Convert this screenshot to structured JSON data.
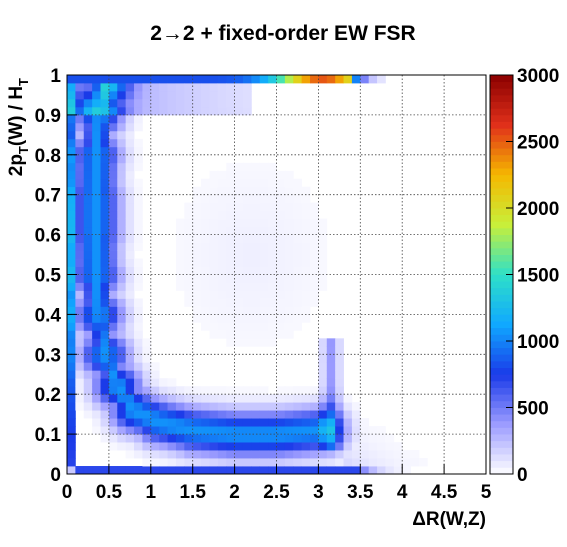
{
  "chart_data": {
    "type": "heatmap",
    "title": "2→2 + fixed-order EW FSR",
    "xlabel": "ΔR(W,Z)",
    "ylabel": "2p_T(W) / H_T",
    "ylabel_parts": {
      "a": "2p",
      "sub1": "T",
      "b": "(W) / H",
      "sub2": "T"
    },
    "xlim": [
      0,
      5
    ],
    "ylim": [
      0,
      1
    ],
    "zlim": [
      0,
      3000
    ],
    "bins": {
      "nx": 50,
      "ny": 50
    },
    "grid": true,
    "x_ticks": [
      "0",
      "0.5",
      "1",
      "1.5",
      "2",
      "2.5",
      "3",
      "3.5",
      "4",
      "4.5",
      "5"
    ],
    "y_ticks": [
      "0",
      "0.1",
      "0.2",
      "0.3",
      "0.4",
      "0.5",
      "0.6",
      "0.7",
      "0.8",
      "0.9",
      "1"
    ],
    "z_ticks": [
      "0",
      "500",
      "1000",
      "1500",
      "2000",
      "2500",
      "3000"
    ],
    "colormap": [
      "#ffffff",
      "#9c9cff",
      "#1a3ae8",
      "#10a8ff",
      "#2ee0c8",
      "#c8ef3a",
      "#f5b800",
      "#e0301a",
      "#8b0000"
    ],
    "features": [
      {
        "region": "top row (y=0.98-1.0)",
        "x": [
          0.0,
          3.3
        ],
        "z_peak": 3000,
        "z_peak_at_x": 3.1
      },
      {
        "region": "ridge arc",
        "description": "arc from x~0.2 down to y~0.1 then toward x~3.1",
        "z_typical": [
          400,
          1000
        ]
      },
      {
        "region": "bottom row (y=0.0-0.02)",
        "x": [
          0.1,
          3.4
        ],
        "z_typical": 700
      },
      {
        "region": "left column (x=0-0.1)",
        "y": [
          0.05,
          0.95
        ],
        "z_typical": 600
      },
      {
        "region": "inner plateau",
        "x": [
          1.0,
          3.2
        ],
        "y": [
          0.2,
          0.9
        ],
        "z_typical": [
          0,
          200
        ]
      }
    ]
  }
}
